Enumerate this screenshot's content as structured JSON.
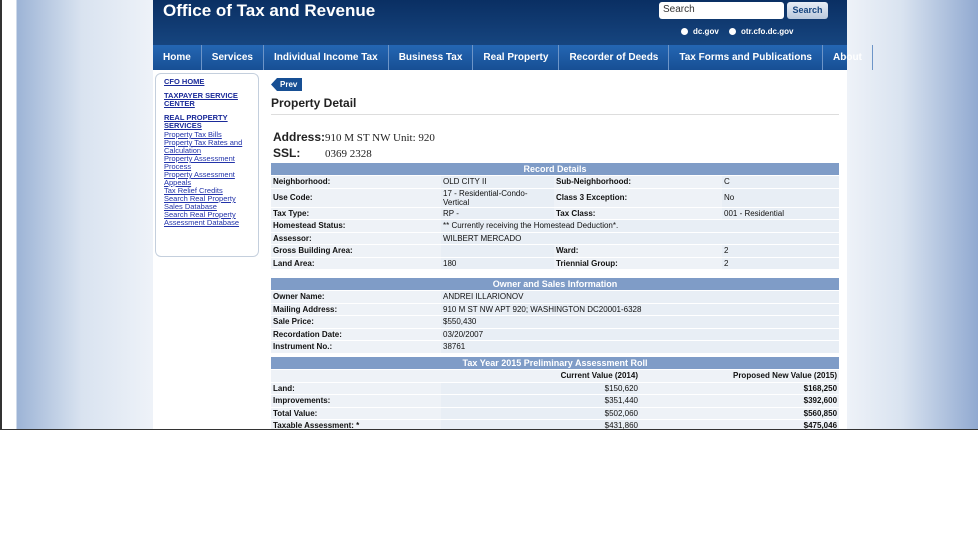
{
  "header": {
    "title": "Office of Tax and Revenue",
    "search_placeholder": "Search",
    "search_button": "Search",
    "radios": [
      "dc.gov",
      "otr.cfo.dc.gov"
    ]
  },
  "nav": [
    "Home",
    "Services",
    "Individual Income Tax",
    "Business Tax",
    "Real Property",
    "Recorder of Deeds",
    "Tax Forms and Publications",
    "About"
  ],
  "sidebar": {
    "top_links": [
      "CFO HOME",
      "TAXPAYER SERVICE CENTER",
      "REAL PROPERTY SERVICES"
    ],
    "sub_links": [
      "Property Tax Bills",
      "Property Tax Rates and Calculation",
      "Property Assessment Process",
      "Property Assessment Appeals",
      "Tax Relief Credits",
      "Search Real Property Sales Database",
      "Search Real Property Assessment Database"
    ]
  },
  "main": {
    "prev": "Prev",
    "heading": "Property Detail",
    "address_label": "Address:",
    "address": "910 M ST NW Unit: 920",
    "ssl_label": "SSL:",
    "ssl": "0369 2328",
    "record": {
      "title": "Record Details",
      "rows": [
        [
          "Neighborhood:",
          "OLD CITY II",
          "Sub-Neighborhood:",
          "C"
        ],
        [
          "Use Code:",
          "17 - Residential-Condo-Vertical",
          "Class 3 Exception:",
          "No"
        ],
        [
          "Tax Type:",
          "RP -",
          "Tax Class:",
          "001 - Residential"
        ],
        [
          "Homestead Status:",
          "** Currently receiving the Homestead Deduction*."
        ],
        [
          "Assessor:",
          "WILBERT MERCADO"
        ],
        [
          "Gross Building Area:",
          null,
          "Ward:",
          "2"
        ],
        [
          "Land Area:",
          "180",
          "Triennial Group:",
          "2"
        ]
      ]
    },
    "owner": {
      "title": "Owner and Sales Information",
      "rows": [
        [
          "Owner Name:",
          "ANDREI ILLARIONOV"
        ],
        [
          "Mailing Address:",
          "910 M ST NW APT 920; WASHINGTON DC20001-6328"
        ],
        [
          "Sale Price:",
          "$550,430"
        ],
        [
          "Recordation Date:",
          "03/20/2007"
        ],
        [
          "Instrument No.:",
          "38761"
        ]
      ]
    },
    "assessment": {
      "title": "Tax Year 2015 Preliminary Assessment Roll",
      "columns": [
        "Current Value (2014)",
        "Proposed New Value (2015)"
      ],
      "rows": [
        [
          "Land:",
          "$150,620",
          "$168,250"
        ],
        [
          "Improvements:",
          "$351,440",
          "$392,600"
        ],
        [
          "Total Value:",
          "$502,060",
          "$560,850"
        ],
        [
          "Taxable Assessment: *",
          "$431,860",
          "$475,046"
        ]
      ]
    }
  }
}
